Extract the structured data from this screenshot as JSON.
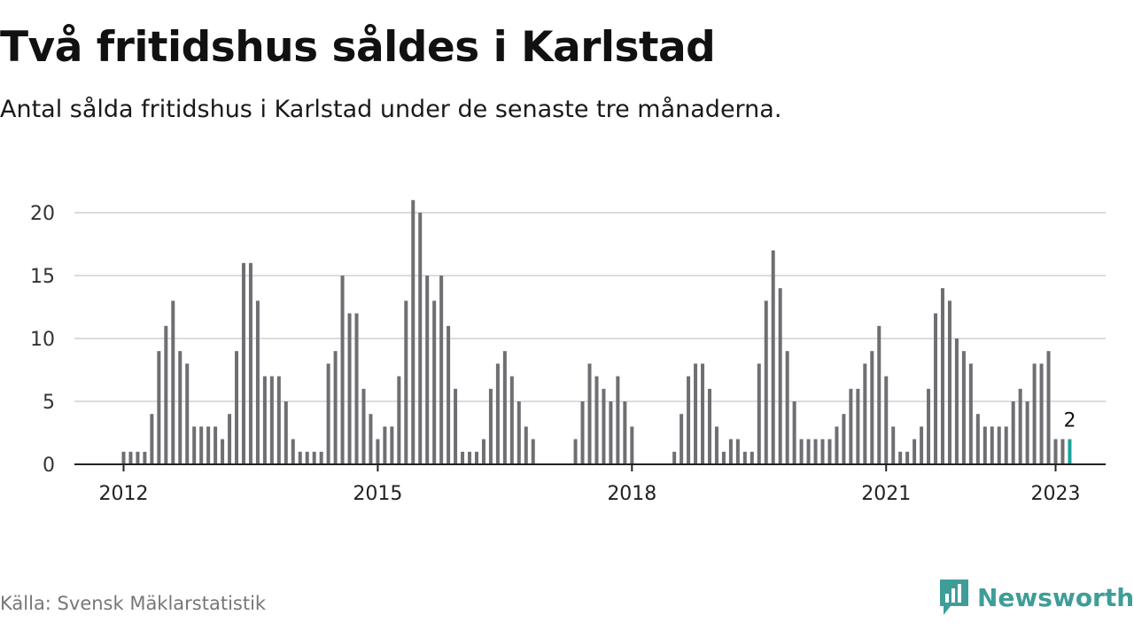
{
  "header": {
    "title": "Två fritidshus såldes i Karlstad",
    "subtitle": "Antal sålda fritidshus i Karlstad under de senaste tre månaderna."
  },
  "footer": {
    "source": "Källa: Svensk Mäklarstatistik",
    "brand": "Newsworthy",
    "brand_icon": "newsworthy-bar-chart-logo-icon"
  },
  "colors": {
    "bar": "#6e6e73",
    "highlight": "#1aa39a",
    "grid": "#dcdcdc",
    "axis": "#222222",
    "brand": "#3f9d98"
  },
  "chart_data": {
    "type": "bar",
    "title": "Två fritidshus såldes i Karlstad",
    "subtitle": "Antal sålda fritidshus i Karlstad under de senaste tre månaderna.",
    "xlabel": "",
    "ylabel": "",
    "ylim": [
      0,
      21
    ],
    "yticks": [
      0,
      5,
      10,
      15,
      20
    ],
    "grid": true,
    "legend": "none",
    "x_start": "2012-01",
    "x_end": "2023-01",
    "x_ticks": [
      {
        "label": "2012",
        "month": "2012-01"
      },
      {
        "label": "2015",
        "month": "2015-01"
      },
      {
        "label": "2018",
        "month": "2018-01"
      },
      {
        "label": "2021",
        "month": "2021-01"
      },
      {
        "label": "2023",
        "month": "2023-01"
      }
    ],
    "highlight_label": "2",
    "values": [
      1,
      1,
      1,
      1,
      4,
      9,
      11,
      13,
      9,
      8,
      3,
      3,
      3,
      3,
      2,
      4,
      9,
      16,
      16,
      13,
      7,
      7,
      7,
      5,
      2,
      1,
      1,
      1,
      1,
      8,
      9,
      15,
      12,
      12,
      6,
      4,
      2,
      3,
      3,
      7,
      13,
      21,
      20,
      15,
      13,
      15,
      11,
      6,
      1,
      1,
      1,
      2,
      6,
      8,
      9,
      7,
      5,
      3,
      2,
      0,
      0,
      0,
      0,
      0,
      2,
      5,
      8,
      7,
      6,
      5,
      7,
      5,
      3,
      0,
      0,
      0,
      0,
      0,
      1,
      4,
      7,
      8,
      8,
      6,
      3,
      1,
      2,
      2,
      1,
      1,
      8,
      13,
      17,
      14,
      9,
      5,
      2,
      2,
      2,
      2,
      2,
      3,
      4,
      6,
      6,
      8,
      9,
      11,
      7,
      3,
      1,
      1,
      2,
      3,
      6,
      12,
      14,
      13,
      10,
      9,
      8,
      4,
      3,
      3,
      3,
      3,
      5,
      6,
      5,
      8,
      8,
      9,
      2,
      2,
      2
    ]
  }
}
